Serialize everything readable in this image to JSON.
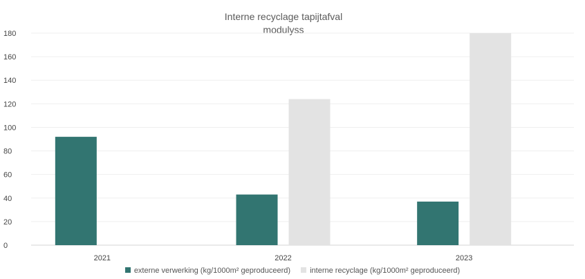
{
  "chart_data": {
    "type": "bar",
    "title_lines": [
      "Interne recyclage tapijtafval",
      "modulyss"
    ],
    "categories": [
      "2021",
      "2022",
      "2023"
    ],
    "series": [
      {
        "name": "externe verwerking (kg/1000m² geproduceerd)",
        "color": "#327571",
        "values": [
          92,
          43,
          37
        ]
      },
      {
        "name": "interne recyclage (kg/1000m² geproduceerd)",
        "color": "#e3e3e3",
        "values": [
          0,
          124,
          180
        ]
      }
    ],
    "ylim": [
      0,
      180
    ],
    "yticks": [
      0,
      20,
      40,
      60,
      80,
      100,
      120,
      140,
      160,
      180
    ],
    "grid": true,
    "legend_position": "bottom"
  }
}
